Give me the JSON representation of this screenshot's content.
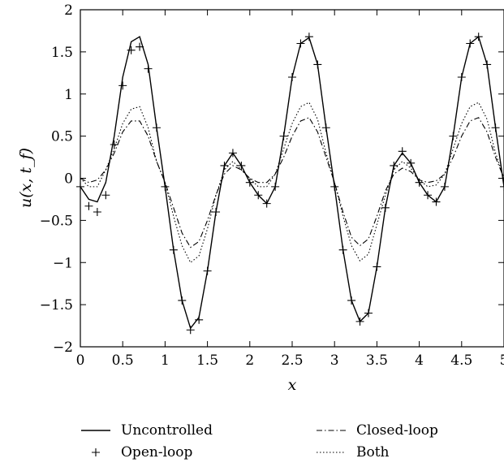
{
  "chart_data": {
    "type": "line",
    "title": "",
    "xlabel": "x",
    "ylabel": "u(x, t_f)",
    "xlim": [
      0,
      5
    ],
    "ylim": [
      -2,
      2
    ],
    "grid": false,
    "legend_position": "bottom",
    "x_ticks": [
      "0",
      "0.5",
      "1",
      "1.5",
      "2",
      "2.5",
      "3",
      "3.5",
      "4",
      "4.5",
      "5"
    ],
    "y_ticks": [
      "2",
      "1.5",
      "1",
      "0.5",
      "0",
      "−0.5",
      "−1",
      "−1.5",
      "−2"
    ],
    "x": [
      0,
      0.1,
      0.2,
      0.3,
      0.4,
      0.5,
      0.6,
      0.7,
      0.8,
      0.9,
      1.0,
      1.1,
      1.2,
      1.3,
      1.4,
      1.5,
      1.6,
      1.7,
      1.8,
      1.9,
      2.0,
      2.1,
      2.2,
      2.3,
      2.4,
      2.5,
      2.6,
      2.7,
      2.8,
      2.9,
      3.0,
      3.1,
      3.2,
      3.3,
      3.4,
      3.5,
      3.6,
      3.7,
      3.8,
      3.9,
      4.0,
      4.1,
      4.2,
      4.3,
      4.4,
      4.5,
      4.6,
      4.7,
      4.8,
      4.9,
      5.0
    ],
    "series": [
      {
        "name": "Uncontrolled",
        "style": "solid",
        "values": [
          -0.1,
          -0.25,
          -0.28,
          -0.05,
          0.5,
          1.2,
          1.62,
          1.68,
          1.35,
          0.6,
          -0.1,
          -0.85,
          -1.45,
          -1.78,
          -1.65,
          -1.1,
          -0.4,
          0.15,
          0.3,
          0.15,
          -0.05,
          -0.2,
          -0.3,
          -0.1,
          0.5,
          1.2,
          1.6,
          1.67,
          1.35,
          0.6,
          -0.1,
          -0.85,
          -1.45,
          -1.7,
          -1.6,
          -1.05,
          -0.35,
          0.15,
          0.3,
          0.18,
          -0.05,
          -0.2,
          -0.28,
          -0.1,
          0.5,
          1.2,
          1.6,
          1.68,
          1.35,
          0.6,
          -0.1
        ]
      },
      {
        "name": "Open-loop",
        "style": "plus-markers",
        "values": [
          -0.1,
          -0.33,
          -0.4,
          -0.2,
          0.4,
          1.1,
          1.52,
          1.56,
          1.3,
          0.6,
          -0.1,
          -0.85,
          -1.45,
          -1.8,
          -1.68,
          -1.1,
          -0.4,
          0.15,
          0.3,
          0.15,
          -0.05,
          -0.2,
          -0.3,
          -0.1,
          0.5,
          1.2,
          1.6,
          1.68,
          1.35,
          0.6,
          -0.1,
          -0.85,
          -1.45,
          -1.7,
          -1.6,
          -1.05,
          -0.35,
          0.15,
          0.32,
          0.18,
          -0.05,
          -0.2,
          -0.28,
          -0.1,
          0.5,
          1.2,
          1.6,
          1.68,
          1.35,
          0.6,
          -0.1
        ]
      },
      {
        "name": "Closed-loop",
        "style": "dash-dot",
        "values": [
          0.0,
          -0.05,
          -0.02,
          0.1,
          0.3,
          0.55,
          0.68,
          0.68,
          0.5,
          0.2,
          -0.05,
          -0.35,
          -0.65,
          -0.82,
          -0.75,
          -0.5,
          -0.2,
          0.05,
          0.15,
          0.1,
          0.0,
          -0.05,
          -0.05,
          0.05,
          0.25,
          0.5,
          0.68,
          0.72,
          0.55,
          0.25,
          -0.05,
          -0.4,
          -0.7,
          -0.8,
          -0.72,
          -0.45,
          -0.15,
          0.05,
          0.12,
          0.08,
          -0.02,
          -0.05,
          -0.03,
          0.05,
          0.25,
          0.5,
          0.68,
          0.72,
          0.55,
          0.25,
          0.0
        ]
      },
      {
        "name": "Both",
        "style": "dotted",
        "values": [
          0.0,
          -0.1,
          -0.1,
          0.1,
          0.35,
          0.65,
          0.82,
          0.85,
          0.6,
          0.2,
          -0.05,
          -0.45,
          -0.8,
          -1.0,
          -0.92,
          -0.6,
          -0.2,
          0.1,
          0.2,
          0.1,
          0.0,
          -0.1,
          -0.1,
          0.05,
          0.35,
          0.65,
          0.85,
          0.9,
          0.7,
          0.3,
          -0.05,
          -0.45,
          -0.8,
          -0.98,
          -0.9,
          -0.55,
          -0.2,
          0.1,
          0.2,
          0.12,
          -0.02,
          -0.1,
          -0.08,
          0.05,
          0.35,
          0.65,
          0.85,
          0.9,
          0.7,
          0.3,
          0.0
        ]
      }
    ]
  }
}
